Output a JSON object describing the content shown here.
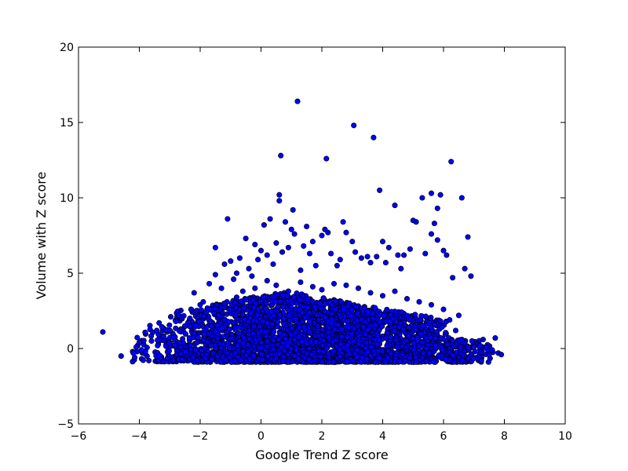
{
  "chart_data": {
    "type": "scatter",
    "title": "",
    "xlabel": "Google Trend Z score",
    "ylabel": "Volume with Z score",
    "xlim": [
      -6,
      10
    ],
    "ylim": [
      -5,
      20
    ],
    "x_ticks": [
      -6,
      -4,
      -2,
      0,
      2,
      4,
      6,
      8,
      10
    ],
    "y_ticks": [
      -5,
      0,
      5,
      10,
      15,
      20
    ],
    "x_tick_labels": [
      "−6",
      "−4",
      "−2",
      "0",
      "2",
      "4",
      "6",
      "8",
      "10"
    ],
    "y_tick_labels": [
      "−5",
      "0",
      "5",
      "10",
      "15",
      "20"
    ],
    "grid": false,
    "marker_color": "#0000ff",
    "marker_edge_color": "#000000",
    "series": [
      {
        "points": [
          [
            -5.2,
            1.1
          ],
          [
            -4.6,
            -0.5
          ],
          [
            -4.2,
            -0.3
          ],
          [
            -4.1,
            0.1
          ],
          [
            -4.0,
            0.4
          ],
          [
            -3.8,
            -0.2
          ],
          [
            -3.6,
            0.5
          ],
          [
            -3.4,
            0.2
          ],
          [
            -3.2,
            0.8
          ],
          [
            -3.0,
            1.2
          ],
          [
            -2.8,
            1.8
          ],
          [
            -2.7,
            2.2
          ],
          [
            -2.5,
            1.5
          ],
          [
            -2.3,
            2.6
          ],
          [
            -2.2,
            3.7
          ],
          [
            -2.0,
            2.9
          ],
          [
            -1.9,
            3.1
          ],
          [
            -1.8,
            2.4
          ],
          [
            -1.7,
            4.3
          ],
          [
            -1.5,
            4.9
          ],
          [
            -1.5,
            6.7
          ],
          [
            -1.3,
            4.0
          ],
          [
            -1.2,
            5.6
          ],
          [
            -1.1,
            8.6
          ],
          [
            -1.0,
            5.8
          ],
          [
            -0.9,
            4.6
          ],
          [
            -0.8,
            5.0
          ],
          [
            -0.7,
            6.0
          ],
          [
            -0.6,
            3.8
          ],
          [
            -0.5,
            7.3
          ],
          [
            -0.4,
            5.3
          ],
          [
            -0.3,
            4.8
          ],
          [
            -0.2,
            6.9
          ],
          [
            -0.1,
            5.9
          ],
          [
            0.0,
            6.5
          ],
          [
            0.1,
            8.2
          ],
          [
            0.2,
            6.2
          ],
          [
            0.3,
            8.6
          ],
          [
            0.4,
            5.6
          ],
          [
            0.5,
            7.0
          ],
          [
            0.6,
            10.2
          ],
          [
            0.6,
            9.8
          ],
          [
            0.65,
            12.8
          ],
          [
            0.7,
            6.4
          ],
          [
            0.8,
            8.4
          ],
          [
            0.9,
            6.7
          ],
          [
            1.0,
            7.9
          ],
          [
            1.05,
            9.2
          ],
          [
            1.1,
            7.6
          ],
          [
            1.2,
            16.4
          ],
          [
            1.3,
            5.2
          ],
          [
            1.4,
            6.8
          ],
          [
            1.5,
            8.1
          ],
          [
            1.6,
            6.3
          ],
          [
            1.7,
            7.1
          ],
          [
            1.8,
            5.5
          ],
          [
            2.0,
            7.5
          ],
          [
            2.1,
            7.9
          ],
          [
            2.15,
            12.6
          ],
          [
            2.2,
            7.7
          ],
          [
            2.3,
            6.3
          ],
          [
            2.5,
            5.5
          ],
          [
            2.6,
            5.9
          ],
          [
            2.7,
            8.4
          ],
          [
            2.8,
            7.7
          ],
          [
            3.0,
            7.1
          ],
          [
            3.05,
            14.8
          ],
          [
            3.1,
            6.4
          ],
          [
            3.3,
            6.0
          ],
          [
            3.5,
            6.1
          ],
          [
            3.6,
            5.7
          ],
          [
            3.7,
            14.0
          ],
          [
            3.8,
            6.1
          ],
          [
            3.9,
            10.5
          ],
          [
            4.0,
            7.1
          ],
          [
            4.1,
            5.7
          ],
          [
            4.2,
            6.7
          ],
          [
            4.4,
            9.5
          ],
          [
            4.5,
            6.2
          ],
          [
            4.6,
            5.3
          ],
          [
            4.7,
            6.2
          ],
          [
            4.9,
            6.6
          ],
          [
            5.0,
            8.5
          ],
          [
            5.1,
            8.4
          ],
          [
            5.3,
            10.0
          ],
          [
            5.4,
            6.3
          ],
          [
            5.6,
            7.6
          ],
          [
            5.6,
            10.3
          ],
          [
            5.7,
            8.3
          ],
          [
            5.8,
            9.3
          ],
          [
            5.8,
            7.2
          ],
          [
            5.9,
            10.2
          ],
          [
            6.0,
            6.5
          ],
          [
            6.1,
            6.2
          ],
          [
            6.25,
            12.4
          ],
          [
            6.3,
            4.7
          ],
          [
            6.5,
            2.2
          ],
          [
            6.6,
            10.0
          ],
          [
            6.7,
            5.3
          ],
          [
            6.8,
            7.4
          ],
          [
            6.9,
            4.8
          ],
          [
            7.0,
            0.1
          ],
          [
            7.2,
            0.2
          ],
          [
            7.3,
            0.6
          ],
          [
            7.4,
            0.1
          ],
          [
            7.5,
            -0.4
          ],
          [
            7.6,
            -0.1
          ],
          [
            7.7,
            0.7
          ],
          [
            7.8,
            -0.3
          ],
          [
            7.9,
            -0.4
          ],
          [
            -1.2,
            3.0
          ],
          [
            -0.8,
            3.4
          ],
          [
            -0.2,
            4.0
          ],
          [
            0.2,
            4.5
          ],
          [
            0.5,
            4.2
          ],
          [
            0.9,
            3.8
          ],
          [
            1.3,
            4.4
          ],
          [
            1.7,
            4.1
          ],
          [
            2.0,
            3.9
          ],
          [
            2.4,
            4.3
          ],
          [
            2.8,
            4.2
          ],
          [
            3.2,
            4.0
          ],
          [
            3.6,
            3.7
          ],
          [
            4.0,
            3.5
          ],
          [
            4.4,
            3.8
          ],
          [
            4.8,
            3.3
          ],
          [
            5.2,
            3.1
          ],
          [
            5.6,
            2.9
          ],
          [
            6.0,
            2.6
          ],
          [
            6.2,
            1.9
          ],
          [
            6.4,
            1.2
          ],
          [
            6.6,
            0.6
          ],
          [
            6.8,
            0.1
          ]
        ]
      }
    ],
    "cloud": {
      "count": 3200,
      "x_min": -4.3,
      "x_max": 7.9,
      "floor": -0.9,
      "peak_center": 0.8
    }
  }
}
